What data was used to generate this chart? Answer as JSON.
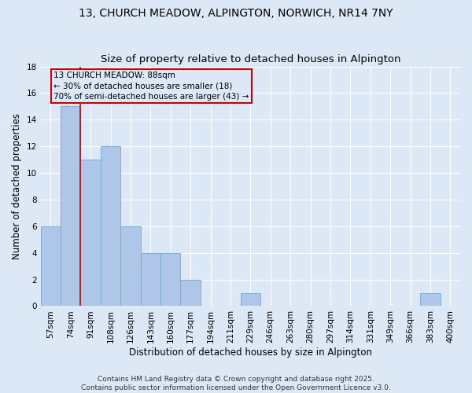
{
  "title": "13, CHURCH MEADOW, ALPINGTON, NORWICH, NR14 7NY",
  "subtitle": "Size of property relative to detached houses in Alpington",
  "xlabel": "Distribution of detached houses by size in Alpington",
  "ylabel": "Number of detached properties",
  "categories": [
    "57sqm",
    "74sqm",
    "91sqm",
    "108sqm",
    "126sqm",
    "143sqm",
    "160sqm",
    "177sqm",
    "194sqm",
    "211sqm",
    "229sqm",
    "246sqm",
    "263sqm",
    "280sqm",
    "297sqm",
    "314sqm",
    "331sqm",
    "349sqm",
    "366sqm",
    "383sqm",
    "400sqm"
  ],
  "values": [
    6,
    15,
    11,
    12,
    6,
    4,
    4,
    2,
    0,
    0,
    1,
    0,
    0,
    0,
    0,
    0,
    0,
    0,
    0,
    1,
    0
  ],
  "bar_color": "#aec6e8",
  "bar_edgecolor": "#7aafd4",
  "subject_line_color": "#cc0000",
  "subject_line_index": 1.5,
  "annotation_text": "13 CHURCH MEADOW: 88sqm\n← 30% of detached houses are smaller (18)\n70% of semi-detached houses are larger (43) →",
  "background_color": "#dce8f5",
  "footnote": "Contains HM Land Registry data © Crown copyright and database right 2025.\nContains public sector information licensed under the Open Government Licence v3.0.",
  "ylim": [
    0,
    18
  ],
  "yticks": [
    0,
    2,
    4,
    6,
    8,
    10,
    12,
    14,
    16,
    18
  ],
  "title_fontsize": 10,
  "axis_label_fontsize": 8.5,
  "tick_fontsize": 7.5,
  "annotation_fontsize": 7.5,
  "footnote_fontsize": 6.5
}
